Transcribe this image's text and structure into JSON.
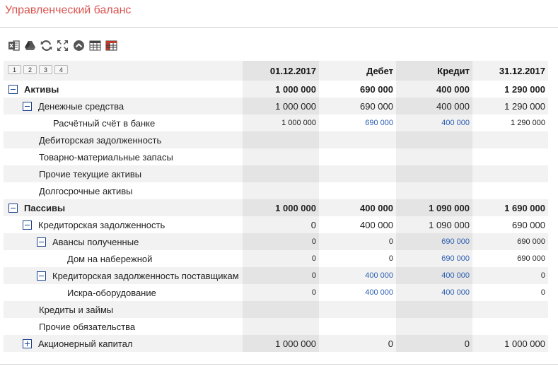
{
  "page": {
    "title": "Управленческий баланс"
  },
  "toolbar": {
    "icons": [
      "excel-export-icon",
      "google-drive-icon",
      "refresh-icon",
      "fullscreen-icon",
      "collapse-up-icon",
      "table-icon",
      "colored-table-icon"
    ]
  },
  "levels": [
    "1",
    "2",
    "3",
    "4"
  ],
  "columns": [
    "01.12.2017",
    "Дебет",
    "Кредит",
    "31.12.2017"
  ],
  "rows": [
    {
      "label": "Активы",
      "values": [
        "1 000 000",
        "690 000",
        "400 000",
        "1 290 000"
      ]
    },
    {
      "label": "Денежные средства",
      "values": [
        "1 000 000",
        "690 000",
        "400 000",
        "1 290 000"
      ]
    },
    {
      "label": "Расчётный счёт в банке",
      "values": [
        "1 000 000",
        "690 000",
        "400 000",
        "1 290 000"
      ]
    },
    {
      "label": "Дебиторская задолженность",
      "values": [
        "",
        "",
        "",
        ""
      ]
    },
    {
      "label": "Товарно-материальные запасы",
      "values": [
        "",
        "",
        "",
        ""
      ]
    },
    {
      "label": "Прочие текущие активы",
      "values": [
        "",
        "",
        "",
        ""
      ]
    },
    {
      "label": "Долгосрочные активы",
      "values": [
        "",
        "",
        "",
        ""
      ]
    },
    {
      "label": "Пассивы",
      "values": [
        "1 000 000",
        "400 000",
        "1 090 000",
        "1 690 000"
      ]
    },
    {
      "label": "Кредиторская задолженность",
      "values": [
        "0",
        "400 000",
        "1 090 000",
        "690 000"
      ]
    },
    {
      "label": "Авансы полученные",
      "values": [
        "0",
        "0",
        "690 000",
        "690 000"
      ]
    },
    {
      "label": "Дом на набережной",
      "values": [
        "0",
        "0",
        "690 000",
        "690 000"
      ]
    },
    {
      "label": "Кредиторская задолженность поставщикам",
      "values": [
        "0",
        "400 000",
        "400 000",
        "0"
      ]
    },
    {
      "label": "Искра-оборудование",
      "values": [
        "0",
        "400 000",
        "400 000",
        "0"
      ]
    },
    {
      "label": "Кредиты и займы",
      "values": [
        "",
        "",
        "",
        ""
      ]
    },
    {
      "label": "Прочие обязательства",
      "values": [
        "",
        "",
        "",
        ""
      ]
    },
    {
      "label": "Акционерный капитал",
      "values": [
        "1 000 000",
        "0",
        "0",
        "1 000 000"
      ]
    }
  ],
  "colors": {
    "title": "#d9534f",
    "link": "#2a5db0",
    "toggle": "#1a3f8a"
  }
}
